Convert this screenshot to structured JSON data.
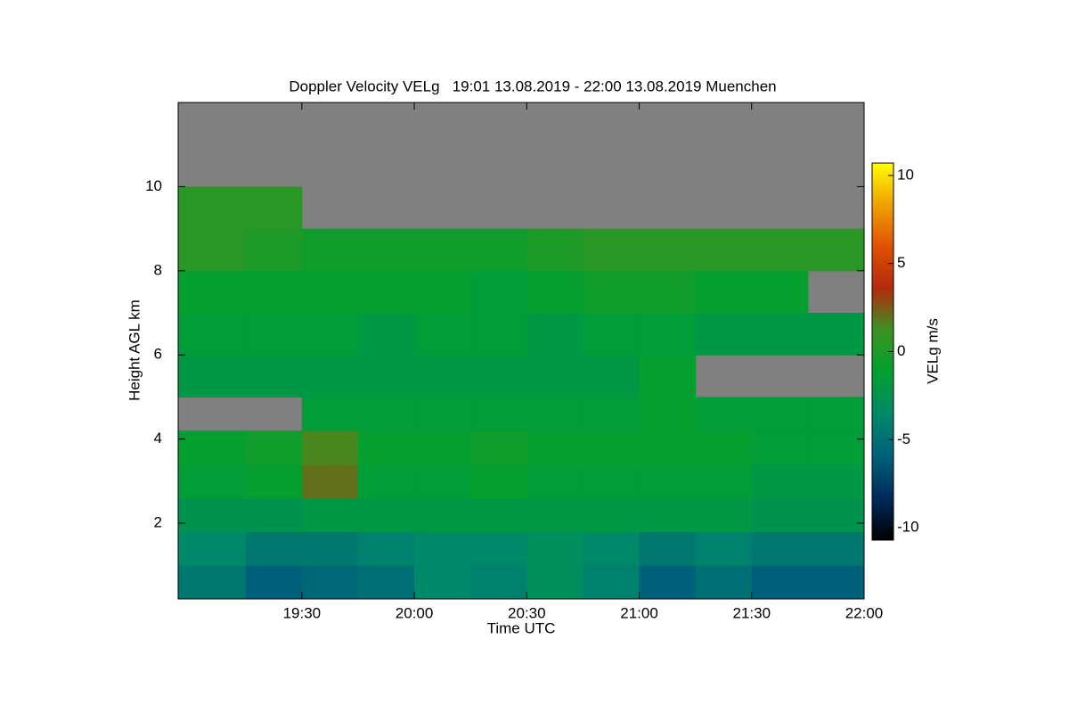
{
  "chart_data": {
    "type": "heatmap",
    "title": "Doppler Velocity VELg   19:01 13.08.2019 - 22:00 13.08.2019 Muenchen",
    "xlabel": "Time UTC",
    "ylabel": "Height AGL km",
    "colorbar_label": "VELg m/s",
    "xlim": [
      18.95,
      22.0
    ],
    "xticks": [
      {
        "value": 19.5,
        "label": "19:30"
      },
      {
        "value": 20.0,
        "label": "20:00"
      },
      {
        "value": 20.5,
        "label": "20:30"
      },
      {
        "value": 21.0,
        "label": "21:00"
      },
      {
        "value": 21.5,
        "label": "21:30"
      },
      {
        "value": 22.0,
        "label": "22:00"
      }
    ],
    "ylim": [
      0.2,
      12
    ],
    "yticks": [
      2,
      4,
      6,
      8,
      10
    ],
    "zlim": [
      -10.7,
      10.7
    ],
    "zticks": [
      -10,
      -5,
      0,
      5,
      10
    ],
    "colormap": [
      "#000000",
      "#002a5a",
      "#00607a",
      "#00886a",
      "#00a030",
      "#3a9420",
      "#b02a10",
      "#e05000",
      "#f0a000",
      "#ffff00"
    ],
    "missing_color": "#808080",
    "xbins": [
      18.95,
      19.25,
      19.5,
      19.75,
      20.0,
      20.25,
      20.5,
      20.75,
      21.0,
      21.25,
      21.5,
      21.75,
      22.0
    ],
    "ybins": [
      0.2,
      1.0,
      1.8,
      2.6,
      3.4,
      4.2,
      5.0,
      6.0,
      7.0,
      8.0,
      9.0,
      10.0,
      11.0,
      12.0
    ],
    "z": [
      [
        -4.5,
        -6,
        -5.5,
        -5,
        -3.5,
        -4,
        -3,
        -4,
        -6,
        -5,
        -6,
        -6
      ],
      [
        -3.5,
        -4.5,
        -4.5,
        -4,
        -3.5,
        -3.5,
        -3,
        -3.5,
        -4.5,
        -4,
        -4.5,
        -4.5
      ],
      [
        -2.5,
        -2.5,
        -2,
        -2,
        -2,
        -2,
        -2,
        -2,
        -2,
        -2,
        -2.5,
        -2.5
      ],
      [
        -1.5,
        -1,
        2,
        -1.5,
        -1.5,
        -1,
        -1.5,
        -1.5,
        -1.5,
        -1.5,
        -2,
        -2
      ],
      [
        -1,
        -0.5,
        1.5,
        -1,
        -1,
        -0.5,
        -1,
        -1,
        -1,
        -1,
        -1.5,
        -1.5
      ],
      [
        null,
        null,
        -1.5,
        -1.5,
        -1.5,
        -1.5,
        -1.5,
        -1.5,
        -1,
        -1.5,
        -1.5,
        -1.5
      ],
      [
        -2,
        -2,
        -2,
        -2,
        -2,
        -2,
        -2,
        -2,
        -1,
        null,
        null,
        null
      ],
      [
        -1.5,
        -1.5,
        -1.5,
        -2,
        -1.5,
        -1.5,
        -2,
        -1.5,
        -1.5,
        -2,
        -2,
        -2
      ],
      [
        -1,
        -1,
        -1,
        -1,
        -1,
        -1.5,
        -1,
        -0.5,
        -0.5,
        -1,
        -1,
        null
      ],
      [
        0.5,
        0,
        -0.5,
        -0.5,
        -0.5,
        -0.5,
        0,
        0.5,
        0.5,
        0.5,
        0.5,
        0.5
      ],
      [
        0.5,
        0.5,
        null,
        null,
        null,
        null,
        null,
        null,
        null,
        null,
        null,
        null
      ],
      [
        null,
        null,
        null,
        null,
        null,
        null,
        null,
        null,
        null,
        null,
        null,
        null
      ],
      [
        null,
        null,
        null,
        null,
        null,
        null,
        null,
        null,
        null,
        null,
        null,
        null
      ]
    ]
  }
}
